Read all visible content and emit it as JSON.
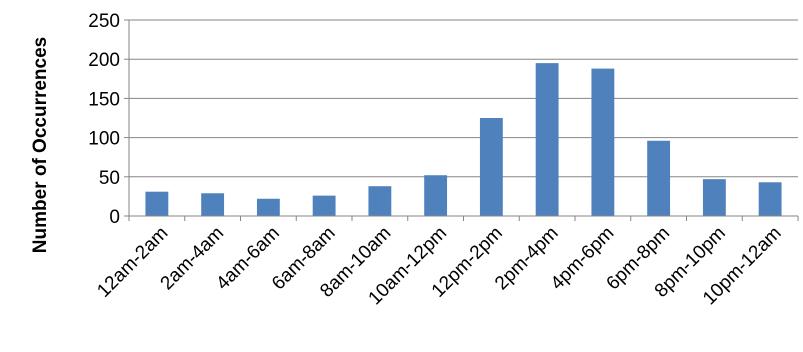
{
  "chart_data": {
    "type": "bar",
    "title": "",
    "xlabel": "",
    "ylabel": "Number of Occurrences",
    "categories": [
      "12am-2am",
      "2am-4am",
      "4am-6am",
      "6am-8am",
      "8am-10am",
      "10am-12pm",
      "12pm-2pm",
      "2pm-4pm",
      "4pm-6pm",
      "6pm-8pm",
      "8pm-10pm",
      "10pm-12am"
    ],
    "values": [
      31,
      29,
      22,
      26,
      38,
      52,
      125,
      195,
      188,
      96,
      47,
      43
    ],
    "ylim": [
      0,
      250
    ],
    "yticks": [
      0,
      50,
      100,
      150,
      200,
      250
    ],
    "grid": true,
    "legend": "none",
    "colors": {
      "bar": "#4F81BD",
      "grid": "#868686",
      "axis": "#868686"
    }
  }
}
